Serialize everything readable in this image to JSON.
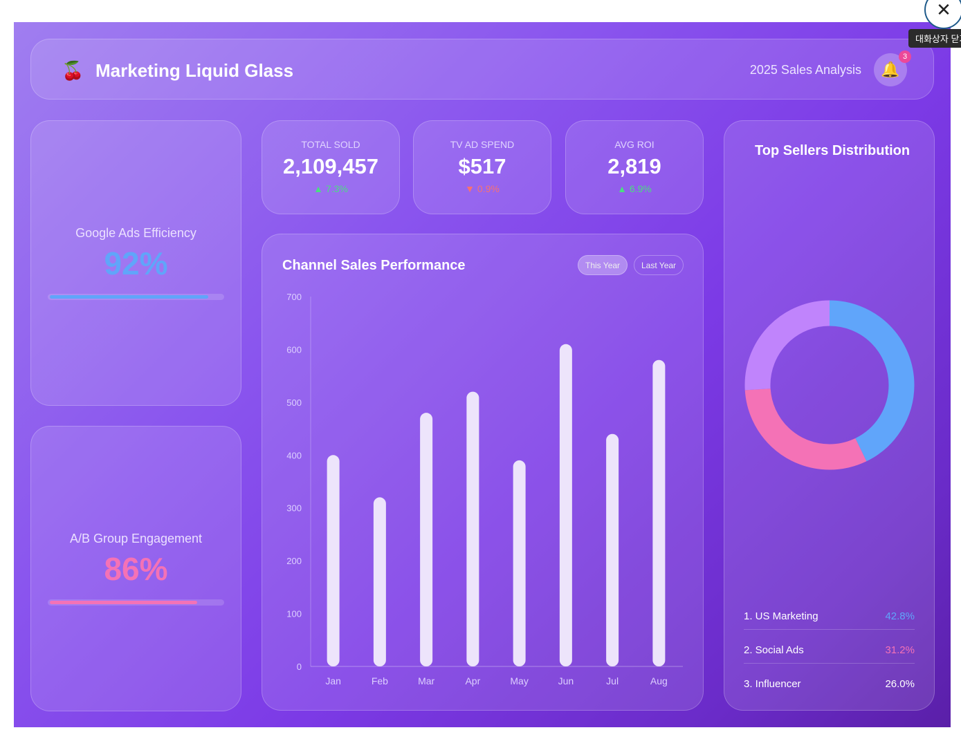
{
  "header": {
    "logo_icon": "cherry-icon",
    "logo_glyph": "🍒",
    "title": "Marketing Liquid Glass",
    "subtitle": "2025 Sales Analysis",
    "notifications": "3",
    "bell_glyph": "🔔"
  },
  "stats": [
    {
      "label": "TOTAL SOLD",
      "value": "2,109,457",
      "change": "▲ 7.3%",
      "color": "#4ade80"
    },
    {
      "label": "TV AD SPEND",
      "value": "$517",
      "change": "▼ 0.9%",
      "color": "#f87171"
    },
    {
      "label": "AVG ROI",
      "value": "2,819",
      "change": "▲ 6.9%",
      "color": "#4ade80"
    }
  ],
  "gauges": [
    {
      "label": "Google Ads Efficiency",
      "value": "92%",
      "percent": 92,
      "color": "#60a5fa"
    },
    {
      "label": "A/B Group Engagement",
      "value": "86%",
      "percent": 86,
      "color": "#f472b6"
    }
  ],
  "chart_data": {
    "type": "bar",
    "title": "Channel Sales Performance",
    "toggles": [
      "This Year",
      "Last Year"
    ],
    "active_toggle": "This Year",
    "categories": [
      "Jan",
      "Feb",
      "Mar",
      "Apr",
      "May",
      "Jun",
      "Jul",
      "Aug"
    ],
    "values": [
      400,
      320,
      480,
      520,
      390,
      610,
      440,
      580
    ],
    "yticks": [
      "0",
      "100",
      "200",
      "300",
      "400",
      "500",
      "600",
      "700"
    ],
    "ylim": [
      0,
      700
    ],
    "bar_color": "#ede4fb"
  },
  "distribution": {
    "title": "Top Sellers Distribution",
    "items": [
      {
        "label": "1. US Marketing",
        "value": "42.8%",
        "percent": 42.8,
        "color": "#60a5fa"
      },
      {
        "label": "2. Social Ads",
        "value": "31.2%",
        "percent": 31.2,
        "color": "#f472b6"
      },
      {
        "label": "3. Influencer",
        "value": "26.0%",
        "percent": 26.0,
        "color": "#c084fc"
      }
    ]
  },
  "dialog": {
    "close_glyph": "✕",
    "close_tooltip": "대화상자 닫기"
  }
}
